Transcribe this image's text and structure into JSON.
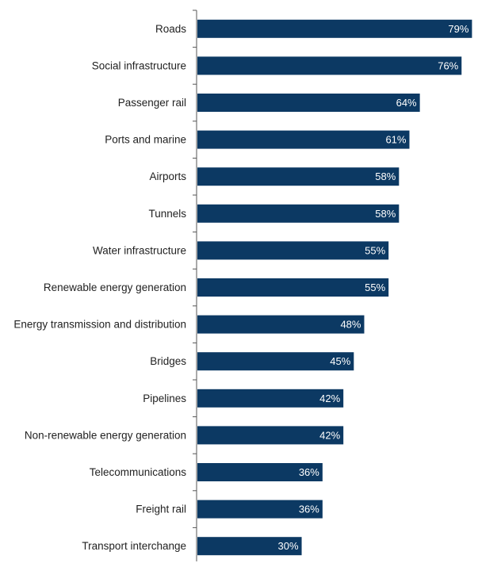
{
  "chart_data": {
    "type": "bar",
    "orientation": "horizontal",
    "categories": [
      "Roads",
      "Social infrastructure",
      "Passenger rail",
      "Ports and marine",
      "Airports",
      "Tunnels",
      "Water infrastructure",
      "Renewable energy generation",
      "Energy transmission and distribution",
      "Bridges",
      "Pipelines",
      "Non-renewable energy generation",
      "Telecommunications",
      "Freight rail",
      "Transport interchange"
    ],
    "values": [
      79,
      76,
      64,
      61,
      58,
      58,
      55,
      55,
      48,
      45,
      42,
      42,
      36,
      36,
      30
    ],
    "value_labels": [
      "79%",
      "76%",
      "64%",
      "61%",
      "58%",
      "58%",
      "55%",
      "55%",
      "48%",
      "45%",
      "42%",
      "42%",
      "36%",
      "36%",
      "30%"
    ],
    "unit": "%",
    "xlim": [
      0,
      80
    ],
    "bar_color": "#0c3963",
    "label_color": "#ffffff",
    "grid": false
  }
}
